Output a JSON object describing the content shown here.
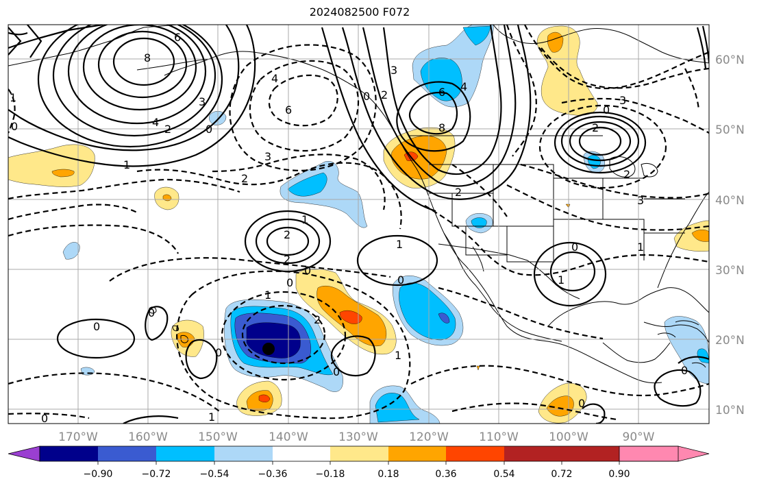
{
  "title": "2024082500 F072",
  "latitude_labels": [
    "60°N",
    "50°N",
    "40°N",
    "30°N",
    "20°N",
    "10°N"
  ],
  "longitude_labels": [
    "170°W",
    "160°W",
    "150°W",
    "140°W",
    "130°W",
    "120°W",
    "110°W",
    "100°W",
    "90°W"
  ],
  "colorbar": {
    "tick_labels": [
      "−0.90",
      "−0.72",
      "−0.54",
      "−0.36",
      "−0.18",
      "0.18",
      "0.36",
      "0.54",
      "0.72",
      "0.90"
    ],
    "colors": [
      "#9a3fd1",
      "#00008b",
      "#3a5bd1",
      "#00bfff",
      "#add8f7",
      "#ffffff",
      "#ffe88a",
      "#ffa500",
      "#ff4500",
      "#b22222",
      "#ff88b0"
    ]
  },
  "fill_colors": {
    "neg_018": "#add8f7",
    "neg_036": "#00bfff",
    "neg_054": "#3a5bd1",
    "neg_072": "#00008b",
    "pos_018": "#ffe88a",
    "pos_036": "#ffa500",
    "pos_054": "#ff4500"
  },
  "contour_labels": [
    {
      "id": "c-6-aleut",
      "text": "6"
    },
    {
      "id": "c-8-aleut",
      "text": "8"
    },
    {
      "id": "c-3-aleut",
      "text": "3"
    },
    {
      "id": "c-4-aleut",
      "text": "4"
    },
    {
      "id": "c-2-aleut",
      "text": "2"
    },
    {
      "id": "c-0-aleut",
      "text": "0"
    },
    {
      "id": "c-1-west",
      "text": "1"
    },
    {
      "id": "c-0-west",
      "text": "0"
    },
    {
      "id": "c-4-gulf",
      "text": "4"
    },
    {
      "id": "c-6-gulf",
      "text": "6"
    },
    {
      "id": "c-3-mid",
      "text": "3"
    },
    {
      "id": "c-2-mid",
      "text": "2"
    },
    {
      "id": "c-1-low",
      "text": "1"
    },
    {
      "id": "c-2-lowa",
      "text": "2"
    },
    {
      "id": "c-2-lowb",
      "text": "2"
    },
    {
      "id": "c-0-c1",
      "text": "0"
    },
    {
      "id": "c-0-c2",
      "text": "0"
    },
    {
      "id": "c-1-c3",
      "text": "1"
    },
    {
      "id": "c-2-c4",
      "text": "2"
    },
    {
      "id": "c-1-bc",
      "text": "1"
    },
    {
      "id": "c-0-hi",
      "text": "0"
    },
    {
      "id": "c-0-hi2",
      "text": "0"
    },
    {
      "id": "c-0-s1",
      "text": "0"
    },
    {
      "id": "c-0-s2",
      "text": "0"
    },
    {
      "id": "c-0-bottom",
      "text": "0"
    },
    {
      "id": "c-1-bottom",
      "text": "1"
    },
    {
      "id": "c-6-canada",
      "text": "6"
    },
    {
      "id": "c-4-canada",
      "text": "4"
    },
    {
      "id": "c-8-canada",
      "text": "8"
    },
    {
      "id": "c-3-canada",
      "text": "3"
    },
    {
      "id": "c-2-canada",
      "text": "2"
    },
    {
      "id": "c-0-canada",
      "text": "0"
    },
    {
      "id": "c-2-ne",
      "text": "2"
    },
    {
      "id": "c-0-ne",
      "text": "0"
    },
    {
      "id": "c-3-ne",
      "text": "3"
    },
    {
      "id": "c-3-us",
      "text": "3"
    },
    {
      "id": "c-2-us",
      "text": "2"
    },
    {
      "id": "c-1-us",
      "text": "1"
    },
    {
      "id": "c-0-tx",
      "text": "0"
    },
    {
      "id": "c-1-tx",
      "text": "1"
    },
    {
      "id": "c-2-west-us",
      "text": "2"
    },
    {
      "id": "c-1-mx",
      "text": "1"
    },
    {
      "id": "c-0-mx",
      "text": "0"
    },
    {
      "id": "c-0-carib",
      "text": "0"
    },
    {
      "id": "c-1-nw",
      "text": "1"
    },
    {
      "id": "c-0-nw",
      "text": "0"
    }
  ]
}
